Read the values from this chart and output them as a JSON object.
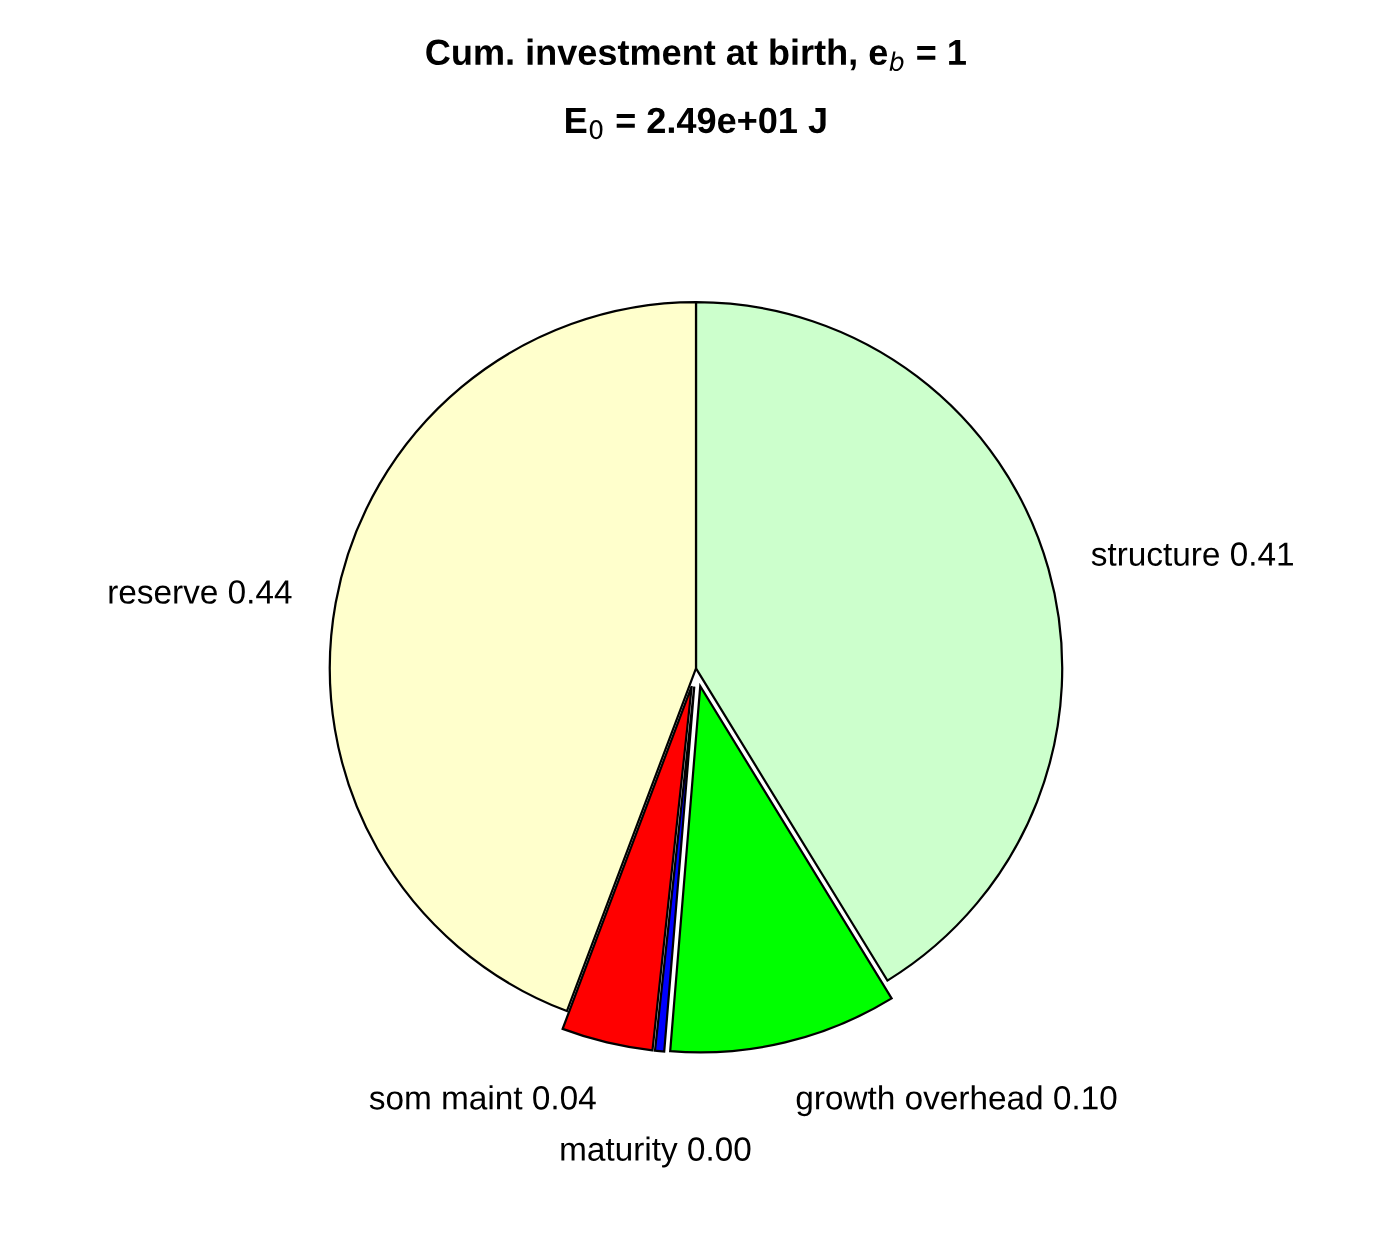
{
  "chart_data": {
    "type": "pie",
    "title": "Cum. investment at birth, e$_{b}$ = 1",
    "subtitle": "E$_{0}$ = 2.49e+01 J",
    "categories": [
      "structure",
      "growth overhead",
      "maturity",
      "som maint",
      "reserve"
    ],
    "values": [
      0.41,
      0.1,
      0.004,
      0.04,
      0.44
    ],
    "value_labels": [
      "0.41",
      "0.10",
      "0.00",
      "0.04",
      "0.44"
    ],
    "colors": [
      "#ccffcc",
      "#00ff00",
      "#0000ff",
      "#ff0000",
      "#ffffcc"
    ]
  }
}
